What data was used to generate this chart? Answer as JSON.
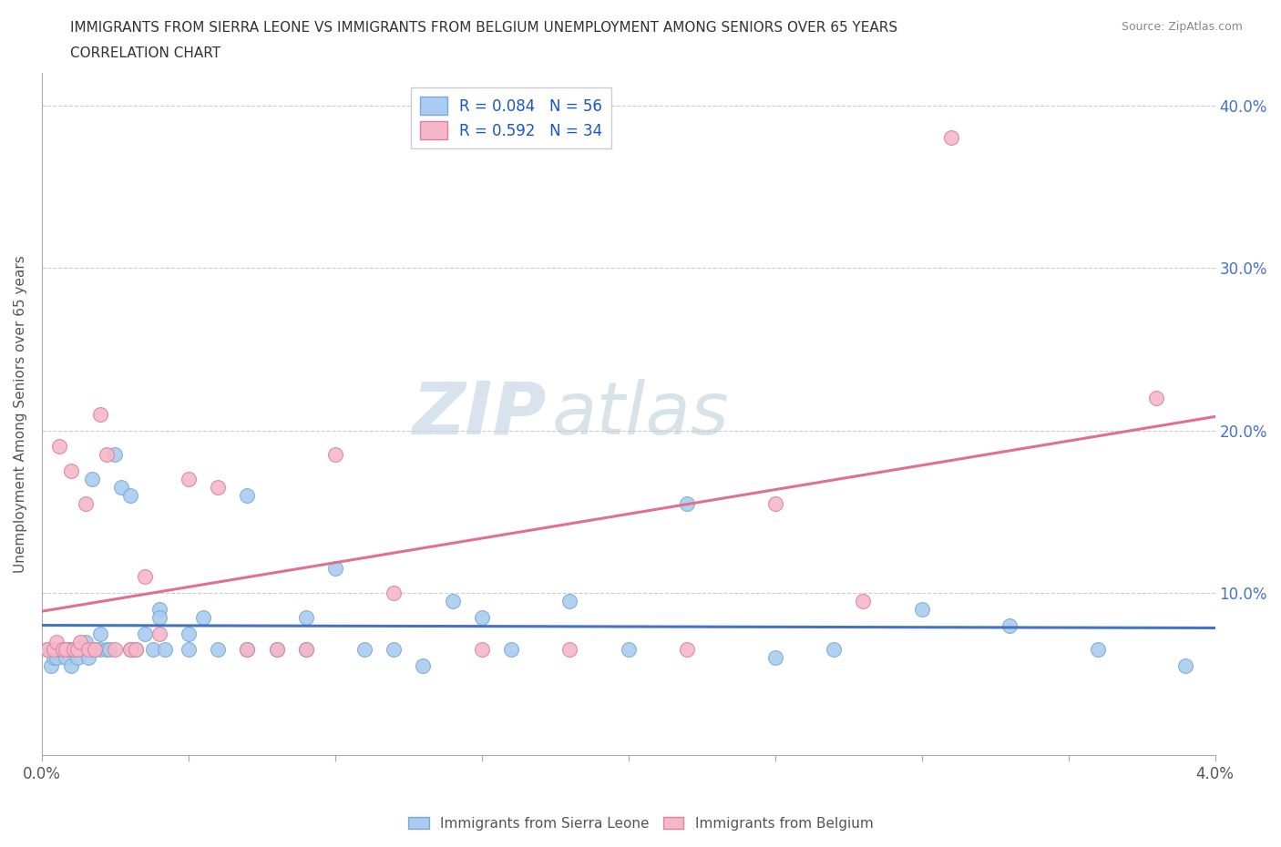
{
  "title_line1": "IMMIGRANTS FROM SIERRA LEONE VS IMMIGRANTS FROM BELGIUM UNEMPLOYMENT AMONG SENIORS OVER 65 YEARS",
  "title_line2": "CORRELATION CHART",
  "source": "Source: ZipAtlas.com",
  "ylabel": "Unemployment Among Seniors over 65 years",
  "xlim": [
    0.0,
    0.04
  ],
  "ylim": [
    0.0,
    0.42
  ],
  "xticks": [
    0.0,
    0.005,
    0.01,
    0.015,
    0.02,
    0.025,
    0.03,
    0.035,
    0.04
  ],
  "yticks": [
    0.0,
    0.1,
    0.2,
    0.3,
    0.4
  ],
  "ytick_labels_right": [
    "",
    "10.0%",
    "20.0%",
    "30.0%",
    "40.0%"
  ],
  "xtick_labels": [
    "0.0%",
    "",
    "",
    "",
    "",
    "",
    "",
    "",
    "4.0%"
  ],
  "sierra_leone_color": "#aaccf0",
  "sierra_leone_edge": "#7aaad4",
  "belgium_color": "#f5b8c8",
  "belgium_edge": "#e080a0",
  "trend_blue": "#4472c4",
  "trend_pink": "#e07090",
  "legend_label_1": "R = 0.084   N = 56",
  "legend_label_2": "R = 0.592   N = 34",
  "watermark_zip": "ZIP",
  "watermark_atlas": "atlas",
  "scatter_sierra_x": [
    0.0002,
    0.0003,
    0.0004,
    0.0005,
    0.0006,
    0.0007,
    0.0008,
    0.0009,
    0.001,
    0.001,
    0.0012,
    0.0013,
    0.0014,
    0.0015,
    0.0016,
    0.0017,
    0.0018,
    0.002,
    0.002,
    0.0022,
    0.0023,
    0.0025,
    0.0027,
    0.003,
    0.003,
    0.0032,
    0.0035,
    0.0038,
    0.004,
    0.004,
    0.0042,
    0.005,
    0.005,
    0.0055,
    0.006,
    0.007,
    0.007,
    0.008,
    0.009,
    0.009,
    0.01,
    0.011,
    0.012,
    0.013,
    0.014,
    0.015,
    0.016,
    0.018,
    0.02,
    0.022,
    0.025,
    0.027,
    0.03,
    0.033,
    0.036,
    0.039
  ],
  "scatter_sierra_y": [
    0.065,
    0.055,
    0.06,
    0.06,
    0.065,
    0.065,
    0.06,
    0.065,
    0.055,
    0.065,
    0.06,
    0.065,
    0.065,
    0.07,
    0.06,
    0.17,
    0.065,
    0.065,
    0.075,
    0.065,
    0.065,
    0.185,
    0.165,
    0.16,
    0.065,
    0.065,
    0.075,
    0.065,
    0.09,
    0.085,
    0.065,
    0.075,
    0.065,
    0.085,
    0.065,
    0.16,
    0.065,
    0.065,
    0.065,
    0.085,
    0.115,
    0.065,
    0.065,
    0.055,
    0.095,
    0.085,
    0.065,
    0.095,
    0.065,
    0.155,
    0.06,
    0.065,
    0.09,
    0.08,
    0.065,
    0.055
  ],
  "scatter_belgium_x": [
    0.0002,
    0.0004,
    0.0005,
    0.0006,
    0.0007,
    0.0008,
    0.001,
    0.0011,
    0.0012,
    0.0013,
    0.0015,
    0.0016,
    0.0018,
    0.002,
    0.0022,
    0.0025,
    0.003,
    0.0032,
    0.0035,
    0.004,
    0.005,
    0.006,
    0.007,
    0.008,
    0.009,
    0.01,
    0.012,
    0.015,
    0.018,
    0.022,
    0.025,
    0.028,
    0.031,
    0.038
  ],
  "scatter_belgium_y": [
    0.065,
    0.065,
    0.07,
    0.19,
    0.065,
    0.065,
    0.175,
    0.065,
    0.065,
    0.07,
    0.155,
    0.065,
    0.065,
    0.21,
    0.185,
    0.065,
    0.065,
    0.065,
    0.11,
    0.075,
    0.17,
    0.165,
    0.065,
    0.065,
    0.065,
    0.185,
    0.1,
    0.065,
    0.065,
    0.065,
    0.155,
    0.095,
    0.38,
    0.22
  ],
  "trend_sierra_y0": 0.068,
  "trend_sierra_y1": 0.085,
  "trend_belgium_y0": 0.04,
  "trend_belgium_y1": 0.26
}
